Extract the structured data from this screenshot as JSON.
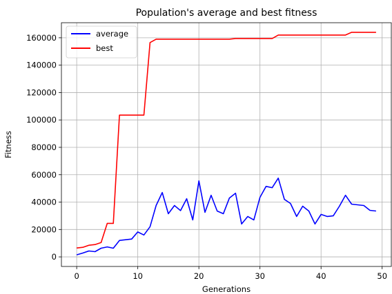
{
  "chart_data": {
    "type": "line",
    "title": "Population's average and best fitness",
    "xlabel": "Generations",
    "ylabel": "Fitness",
    "xlim": [
      -2.5,
      51.5
    ],
    "ylim": [
      -7000,
      171000
    ],
    "xticks": [
      0,
      10,
      20,
      30,
      40,
      50
    ],
    "yticks": [
      0,
      20000,
      40000,
      60000,
      80000,
      100000,
      120000,
      140000,
      160000
    ],
    "grid": true,
    "legend_position": "top-left",
    "x": [
      0,
      1,
      2,
      3,
      4,
      5,
      6,
      7,
      8,
      9,
      10,
      11,
      12,
      13,
      14,
      15,
      16,
      17,
      18,
      19,
      20,
      21,
      22,
      23,
      24,
      25,
      26,
      27,
      28,
      29,
      30,
      31,
      32,
      33,
      34,
      35,
      36,
      37,
      38,
      39,
      40,
      41,
      42,
      43,
      44,
      45,
      46,
      47,
      48,
      49
    ],
    "series": [
      {
        "name": "average",
        "color": "#0000ff",
        "values": [
          1500,
          2800,
          4300,
          3800,
          6300,
          7300,
          6300,
          12000,
          12500,
          13000,
          18200,
          16000,
          22000,
          37500,
          47000,
          31500,
          37500,
          33800,
          42500,
          27000,
          55500,
          32500,
          45000,
          33500,
          31500,
          43000,
          46500,
          24000,
          29500,
          27000,
          43500,
          51500,
          50500,
          57500,
          42000,
          39000,
          29500,
          37000,
          33500,
          24000,
          31000,
          29500,
          30000,
          37000,
          45000,
          38500,
          38000,
          37500,
          34000,
          33500
        ]
      },
      {
        "name": "best",
        "color": "#ff0000",
        "values": [
          6500,
          7000,
          8500,
          9000,
          10500,
          24500,
          24500,
          103500,
          103500,
          103500,
          103500,
          103500,
          156500,
          159000,
          159000,
          159000,
          159000,
          159000,
          159000,
          159000,
          159000,
          159000,
          159000,
          159000,
          159000,
          159000,
          159500,
          159500,
          159500,
          159500,
          159500,
          159500,
          159500,
          162000,
          162000,
          162000,
          162000,
          162000,
          162000,
          162000,
          162000,
          162000,
          162000,
          162000,
          162000,
          164000,
          164000,
          164000,
          164000,
          164000
        ]
      }
    ]
  }
}
